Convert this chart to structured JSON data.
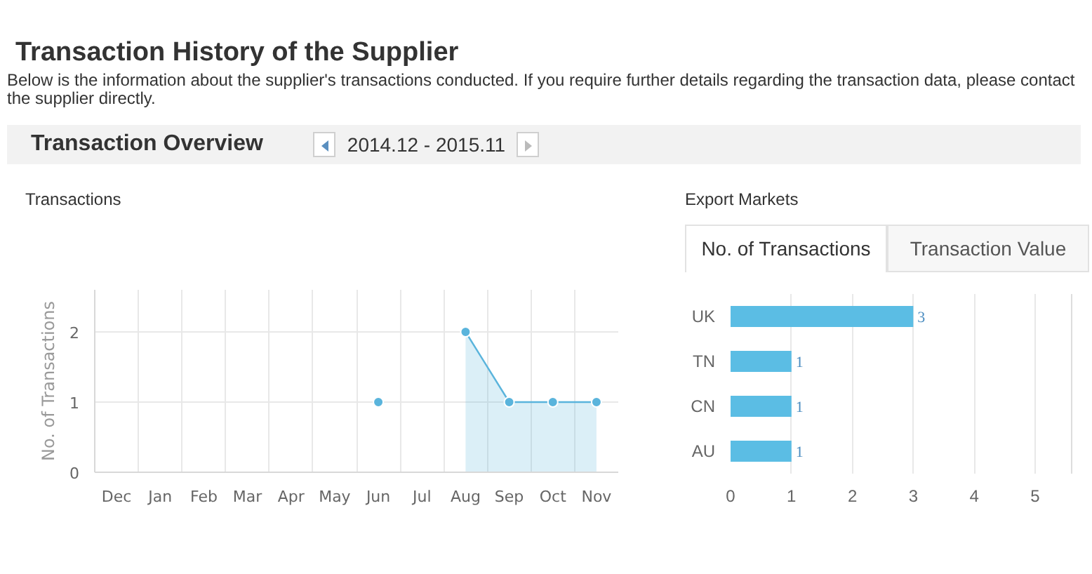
{
  "chart_data": [
    {
      "type": "other",
      "title": "Transaction History of the Supplier",
      "subtitle": "Below is the information about the supplier's transactions conducted. If you require further details regarding the transaction data, please contact the supplier directly.",
      "annotations": [
        "Transaction Overview",
        "2014.12 - 2015.11"
      ]
    },
    {
      "type": "area",
      "title": "Transactions",
      "categories": [
        "Dec",
        "Jan",
        "Feb",
        "Mar",
        "Apr",
        "May",
        "Jun",
        "Jul",
        "Aug",
        "Sep",
        "Oct",
        "Nov"
      ],
      "series": [
        {
          "type": "area",
          "color": "#5ab4dc",
          "values": [
            null,
            null,
            null,
            null,
            null,
            null,
            null,
            null,
            2,
            1,
            1,
            1
          ]
        },
        {
          "type": "scatter",
          "color": "#5ab4dc",
          "values": [
            null,
            null,
            null,
            null,
            null,
            null,
            1,
            null,
            null,
            null,
            null,
            null
          ]
        }
      ],
      "ylim": [
        0,
        2.6
      ],
      "yticks": [
        0,
        1,
        2
      ],
      "ylabel": "No. of Transactions",
      "grid": true,
      "marker": "circle"
    },
    {
      "type": "bar",
      "orientation": "horizontal",
      "title": "Export Markets",
      "annotations": [
        "No. of Transactions",
        "Transaction Value"
      ],
      "categories": [
        "UK",
        "TN",
        "CN",
        "AU"
      ],
      "values": [
        3,
        1,
        1,
        1
      ],
      "color": "#5bbde4",
      "xlim": [
        0,
        5.6
      ],
      "xticks": [
        0,
        1,
        2,
        3,
        4,
        5
      ],
      "grid": "x",
      "data_labels": true
    }
  ]
}
